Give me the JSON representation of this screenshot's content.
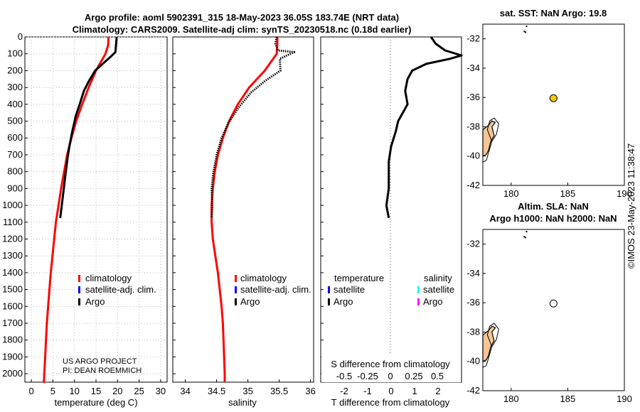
{
  "header": {
    "title_line1": "Argo profile: aoml 5902391_315 18-May-2023 36.05S 183.74E (NRT data)",
    "title_line2": "Climatology: CARS2009. Satellite-adj clim: synTS_20230518.nc (0.18d earlier)"
  },
  "credit": {
    "line1": "US ARGO PROJECT",
    "line2": "PI: DEAN ROEMMICH"
  },
  "watermark": "©IMOS 23-May-2023 11:38:47",
  "colors": {
    "climatology": "#ff0000",
    "satellite": "#0000ff",
    "argo": "#000000",
    "sat_salinity": "#00ffff",
    "argo_salinity": "#ff00ff",
    "land": "#f5c595",
    "float_marker": "#f2c80f"
  },
  "chart_data": [
    {
      "id": "temperature",
      "type": "line",
      "xlabel": "temperature (deg C)",
      "xlim": [
        -1.5,
        31.5
      ],
      "ylim": [
        0,
        2050
      ],
      "xticks": [
        0,
        5,
        10,
        15,
        20,
        25,
        30
      ],
      "yticks": [
        0,
        100,
        200,
        300,
        400,
        500,
        600,
        700,
        800,
        900,
        1000,
        1100,
        1200,
        1300,
        1400,
        1500,
        1600,
        1700,
        1800,
        1900,
        2000
      ],
      "legend": [
        "climatology",
        "satellite-adj. clim.",
        "Argo"
      ],
      "series": [
        {
          "name": "climatology",
          "color": "#ff0000",
          "x": [
            17.9,
            17.8,
            17.2,
            15.0,
            13.3,
            11.8,
            10.4,
            9.3,
            8.3,
            7.6,
            6.9,
            6.3,
            5.7,
            5.3,
            4.9,
            4.5,
            4.2,
            3.9,
            3.6,
            3.4,
            3.2,
            3.0,
            2.9,
            2.8
          ],
          "y": [
            0,
            50,
            100,
            200,
            300,
            400,
            500,
            600,
            700,
            800,
            900,
            1000,
            1100,
            1200,
            1300,
            1400,
            1500,
            1600,
            1700,
            1800,
            1900,
            2000,
            2050,
            2050
          ]
        },
        {
          "name": "Argo",
          "color": "#000000",
          "x": [
            19.8,
            19.7,
            19.5,
            18.3,
            14.8,
            13.4,
            12.2,
            11.2,
            10.3,
            9.5,
            8.9,
            8.4,
            7.9,
            7.3,
            6.7
          ],
          "y": [
            0,
            30,
            90,
            120,
            200,
            260,
            320,
            400,
            470,
            560,
            640,
            720,
            820,
            950,
            1075
          ]
        }
      ]
    },
    {
      "id": "salinity",
      "type": "line",
      "xlabel": "salinity",
      "xlim": [
        33.8,
        36.05
      ],
      "ylim": [
        0,
        2050
      ],
      "xticks": [
        34,
        34.5,
        35,
        35.5,
        36
      ],
      "legend": [
        "climatology",
        "satellite-adj. clim.",
        "Argo"
      ],
      "series": [
        {
          "name": "climatology",
          "color": "#ff0000",
          "x": [
            35.47,
            35.47,
            35.46,
            35.27,
            35.02,
            34.84,
            34.7,
            34.6,
            34.52,
            34.47,
            34.44,
            34.42,
            34.42,
            34.44,
            34.48,
            34.52,
            34.55,
            34.58,
            34.6,
            34.61,
            34.62,
            34.63,
            34.63
          ],
          "y": [
            0,
            40,
            100,
            200,
            300,
            400,
            500,
            600,
            700,
            800,
            900,
            1000,
            1100,
            1200,
            1300,
            1400,
            1500,
            1600,
            1700,
            1800,
            1900,
            2000,
            2050
          ]
        },
        {
          "name": "Argo",
          "color": "#000000",
          "x": [
            35.46,
            35.44,
            35.48,
            35.74,
            35.51,
            35.52,
            35.28,
            35.05,
            34.85,
            34.69,
            34.58,
            34.5,
            34.45,
            34.42,
            34.43,
            34.42
          ],
          "y": [
            0,
            40,
            80,
            90,
            130,
            200,
            260,
            330,
            420,
            510,
            600,
            700,
            800,
            900,
            1000,
            1075
          ]
        }
      ]
    },
    {
      "id": "difference",
      "type": "line",
      "xlabel": "T difference from climatology",
      "xlabel2": "S difference from climatology",
      "xlim": [
        -3,
        3
      ],
      "ylim": [
        0,
        2050
      ],
      "xticks": [
        -2,
        -1,
        0,
        1,
        2
      ],
      "x2ticks": [
        "-0.5",
        "-0.25",
        "0",
        "0.25",
        "0.5"
      ],
      "legend_titles": [
        "temperature",
        "salinity"
      ],
      "legend_t": [
        "satellite",
        "Argo"
      ],
      "legend_s": [
        "satellite",
        "Argo"
      ],
      "series": [
        {
          "name": "Argo T difference",
          "color": "#000000",
          "x": [
            1.7,
            1.9,
            2.3,
            3.0,
            2.5,
            1.5,
            0.9,
            0.7,
            0.6,
            0.7,
            0.5,
            0.3,
            0.2,
            0.0,
            -0.1,
            -0.1,
            -0.1,
            -0.2,
            -0.1
          ],
          "y": [
            0,
            40,
            80,
            110,
            130,
            160,
            200,
            250,
            320,
            400,
            450,
            500,
            560,
            650,
            740,
            820,
            900,
            1000,
            1075
          ]
        }
      ]
    },
    {
      "id": "map_sst",
      "type": "scatter",
      "title": "sat. SST: NaN Argo: 19.8",
      "xlim": [
        177.5,
        190
      ],
      "ylim": [
        -42,
        -31
      ],
      "xticks": [
        180,
        185,
        190
      ],
      "yticks": [
        -32,
        -34,
        -36,
        -38,
        -40,
        -42
      ],
      "float": {
        "lon": 183.74,
        "lat": -36.05
      }
    },
    {
      "id": "map_sla",
      "type": "scatter",
      "title_line1": "Altim. SLA: NaN",
      "title_line2": "Argo h1000: NaN h2000: NaN",
      "xlim": [
        177.5,
        190
      ],
      "ylim": [
        -42,
        -31
      ],
      "xticks": [
        180,
        185,
        190
      ],
      "yticks": [
        -32,
        -34,
        -36,
        -38,
        -40,
        -42
      ],
      "float": {
        "lon": 183.74,
        "lat": -36.05
      }
    }
  ]
}
